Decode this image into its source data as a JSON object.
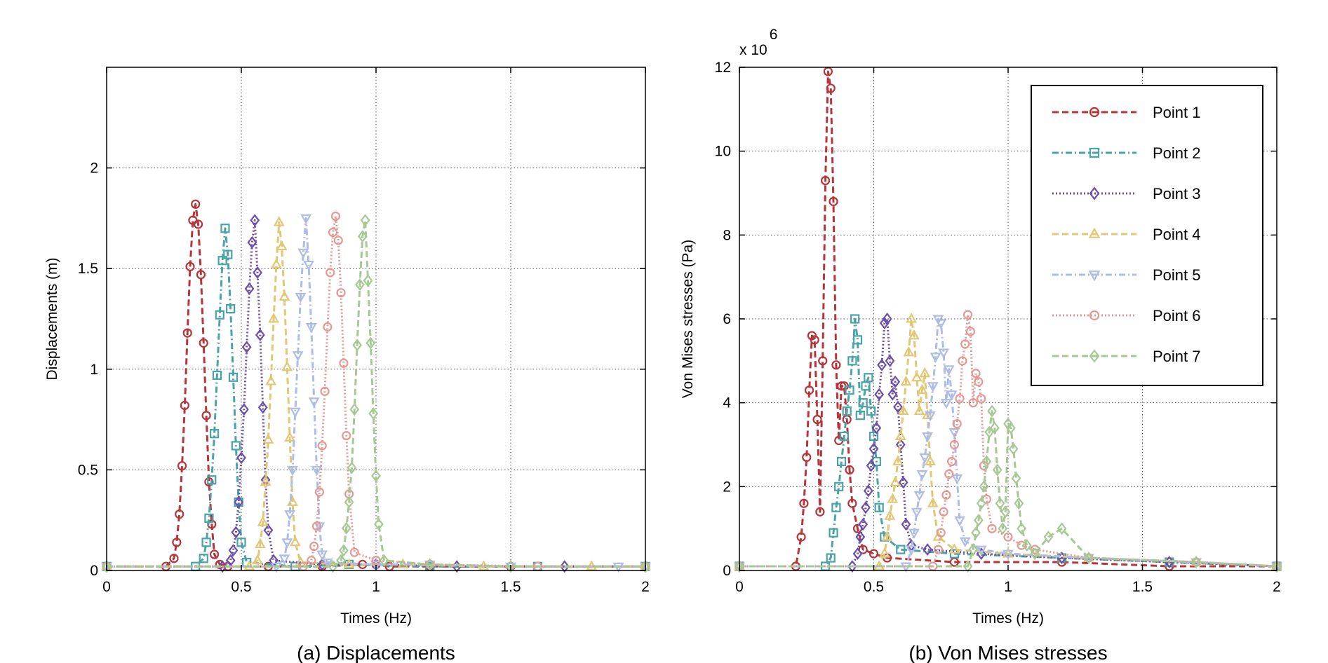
{
  "chart_data": [
    {
      "type": "line",
      "caption": "(a) Displacements",
      "xlabel": "Times (Hz)",
      "ylabel": "Displacements (m)",
      "xlim": [
        0,
        2
      ],
      "ylim": [
        0,
        2.5
      ],
      "xticks": [
        0,
        0.5,
        1,
        1.5,
        2
      ],
      "xtick_labels": [
        "0",
        "0.5",
        "1",
        "1.5",
        "2"
      ],
      "yticks": [
        0,
        0.5,
        1,
        1.5,
        2
      ],
      "ytick_labels": [
        "0",
        "0.5",
        "1",
        "1.5",
        "2"
      ],
      "grid": true,
      "legend": false,
      "series": [
        {
          "color": "#b5363a",
          "dash": "9,5",
          "marker": "circle",
          "x": [
            0,
            0.22,
            0.25,
            0.26,
            0.27,
            0.28,
            0.29,
            0.3,
            0.31,
            0.32,
            0.33,
            0.34,
            0.35,
            0.36,
            0.37,
            0.38,
            0.39,
            0.4,
            0.42,
            0.45,
            0.6,
            0.8,
            0.95,
            1.0,
            1.05,
            1.2,
            1.5,
            2.0
          ],
          "y": [
            0.02,
            0.02,
            0.06,
            0.14,
            0.28,
            0.52,
            0.82,
            1.18,
            1.51,
            1.74,
            1.82,
            1.72,
            1.47,
            1.13,
            0.77,
            0.44,
            0.23,
            0.08,
            0.03,
            0.02,
            0.02,
            0.02,
            0.03,
            0.03,
            0.02,
            0.02,
            0.02,
            0.02
          ]
        },
        {
          "color": "#4aa3a7",
          "dash": "9,4,2,4",
          "marker": "square",
          "x": [
            0,
            0.33,
            0.36,
            0.37,
            0.38,
            0.39,
            0.4,
            0.41,
            0.42,
            0.43,
            0.44,
            0.45,
            0.46,
            0.47,
            0.48,
            0.49,
            0.5,
            0.52,
            0.7,
            0.9,
            1.2,
            1.6,
            2.0
          ],
          "y": [
            0.02,
            0.02,
            0.06,
            0.14,
            0.26,
            0.45,
            0.68,
            0.97,
            1.27,
            1.54,
            1.7,
            1.57,
            1.3,
            0.96,
            0.62,
            0.34,
            0.14,
            0.04,
            0.02,
            0.03,
            0.02,
            0.02,
            0.02
          ]
        },
        {
          "color": "#6b4fa8",
          "dash": "2,3",
          "marker": "diamond",
          "x": [
            0,
            0.43,
            0.46,
            0.47,
            0.48,
            0.49,
            0.5,
            0.51,
            0.52,
            0.53,
            0.54,
            0.55,
            0.56,
            0.57,
            0.58,
            0.59,
            0.6,
            0.62,
            0.8,
            1.0,
            1.3,
            1.7,
            2.0
          ],
          "y": [
            0.02,
            0.02,
            0.05,
            0.1,
            0.19,
            0.34,
            0.56,
            0.8,
            1.11,
            1.4,
            1.63,
            1.74,
            1.48,
            1.17,
            0.81,
            0.45,
            0.2,
            0.05,
            0.03,
            0.03,
            0.02,
            0.02,
            0.02
          ]
        },
        {
          "color": "#e2c777",
          "dash": "9,5",
          "marker": "triangle-up",
          "x": [
            0,
            0.53,
            0.56,
            0.57,
            0.58,
            0.59,
            0.6,
            0.61,
            0.62,
            0.63,
            0.64,
            0.65,
            0.66,
            0.67,
            0.68,
            0.69,
            0.7,
            0.72,
            0.9,
            1.1,
            1.4,
            1.8,
            2.0
          ],
          "y": [
            0.02,
            0.02,
            0.05,
            0.13,
            0.24,
            0.44,
            0.65,
            0.94,
            1.25,
            1.52,
            1.73,
            1.61,
            1.36,
            1.01,
            0.66,
            0.34,
            0.14,
            0.04,
            0.03,
            0.03,
            0.02,
            0.02,
            0.02
          ]
        },
        {
          "color": "#aebde6",
          "dash": "9,4,2,4",
          "marker": "triangle-down",
          "x": [
            0,
            0.63,
            0.66,
            0.67,
            0.68,
            0.69,
            0.7,
            0.71,
            0.72,
            0.73,
            0.74,
            0.75,
            0.76,
            0.77,
            0.78,
            0.79,
            0.8,
            0.82,
            1.0,
            1.2,
            1.5,
            1.9,
            2.0
          ],
          "y": [
            0.02,
            0.02,
            0.06,
            0.14,
            0.28,
            0.5,
            0.79,
            1.07,
            1.36,
            1.58,
            1.75,
            1.52,
            1.21,
            0.84,
            0.5,
            0.22,
            0.08,
            0.04,
            0.03,
            0.03,
            0.02,
            0.02,
            0.02
          ]
        },
        {
          "color": "#e39a94",
          "dash": "2,3",
          "marker": "circle",
          "x": [
            0,
            0.73,
            0.76,
            0.77,
            0.78,
            0.79,
            0.8,
            0.81,
            0.82,
            0.83,
            0.84,
            0.85,
            0.86,
            0.87,
            0.88,
            0.89,
            0.9,
            0.92,
            1.0,
            1.2,
            1.6,
            2.0
          ],
          "y": [
            0.02,
            0.02,
            0.05,
            0.12,
            0.22,
            0.39,
            0.62,
            0.89,
            1.21,
            1.48,
            1.68,
            1.76,
            1.64,
            1.38,
            1.03,
            0.67,
            0.38,
            0.09,
            0.05,
            0.03,
            0.02,
            0.02
          ]
        },
        {
          "color": "#a6c994",
          "dash": "9,5",
          "marker": "diamond",
          "x": [
            0,
            0.84,
            0.87,
            0.88,
            0.89,
            0.9,
            0.91,
            0.92,
            0.93,
            0.94,
            0.95,
            0.96,
            0.97,
            0.98,
            0.99,
            1.0,
            1.01,
            1.03,
            1.2,
            1.5,
            2.0
          ],
          "y": [
            0.02,
            0.02,
            0.05,
            0.1,
            0.21,
            0.34,
            0.51,
            0.8,
            1.12,
            1.42,
            1.66,
            1.74,
            1.44,
            1.13,
            0.78,
            0.47,
            0.23,
            0.05,
            0.03,
            0.02,
            0.02
          ]
        }
      ]
    },
    {
      "type": "line",
      "caption": "(b) Von Mises stresses",
      "xlabel": "Times (Hz)",
      "ylabel": "Von Mises stresses (Pa)",
      "y_multiplier": "x 10",
      "y_multiplier_exp": "6",
      "xlim": [
        0,
        2
      ],
      "ylim": [
        0,
        12
      ],
      "xticks": [
        0,
        0.5,
        1,
        1.5,
        2
      ],
      "xtick_labels": [
        "0",
        "0.5",
        "1",
        "1.5",
        "2"
      ],
      "yticks": [
        0,
        2,
        4,
        6,
        8,
        10,
        12
      ],
      "ytick_labels": [
        "0",
        "2",
        "4",
        "6",
        "8",
        "10",
        "12"
      ],
      "grid": true,
      "legend": "top-right",
      "series": [
        {
          "name": "Point 1",
          "color": "#b5363a",
          "dash": "9,5",
          "marker": "circle",
          "x": [
            0,
            0.21,
            0.23,
            0.24,
            0.25,
            0.26,
            0.27,
            0.28,
            0.29,
            0.3,
            0.31,
            0.32,
            0.33,
            0.34,
            0.35,
            0.36,
            0.37,
            0.38,
            0.39,
            0.4,
            0.41,
            0.42,
            0.44,
            0.46,
            0.5,
            0.55,
            0.8,
            1.2,
            1.6,
            2.0
          ],
          "y": [
            0.1,
            0.1,
            0.8,
            1.6,
            2.7,
            4.3,
            5.6,
            5.5,
            3.6,
            1.4,
            5.0,
            9.3,
            11.9,
            11.5,
            8.8,
            4.9,
            3.1,
            4.4,
            4.4,
            3.6,
            2.4,
            1.6,
            1.0,
            0.5,
            0.4,
            0.3,
            0.2,
            0.2,
            0.1,
            0.1
          ]
        },
        {
          "name": "Point 2",
          "color": "#4aa3a7",
          "dash": "9,4,2,4",
          "marker": "square",
          "x": [
            0,
            0.32,
            0.34,
            0.35,
            0.36,
            0.37,
            0.38,
            0.39,
            0.4,
            0.41,
            0.42,
            0.43,
            0.44,
            0.45,
            0.46,
            0.47,
            0.48,
            0.49,
            0.5,
            0.51,
            0.52,
            0.54,
            0.6,
            0.8,
            1.2,
            1.6,
            2.0
          ],
          "y": [
            0.1,
            0.1,
            0.3,
            0.9,
            1.5,
            2.0,
            2.6,
            3.2,
            3.8,
            4.3,
            5.0,
            6.0,
            5.5,
            3.7,
            4.0,
            4.4,
            4.6,
            3.8,
            3.2,
            2.6,
            1.5,
            0.8,
            0.5,
            0.4,
            0.3,
            0.2,
            0.1
          ]
        },
        {
          "name": "Point 3",
          "color": "#6b4fa8",
          "dash": "2,3",
          "marker": "diamond",
          "x": [
            0,
            0.42,
            0.44,
            0.45,
            0.46,
            0.47,
            0.48,
            0.49,
            0.5,
            0.51,
            0.52,
            0.53,
            0.54,
            0.55,
            0.56,
            0.57,
            0.58,
            0.59,
            0.6,
            0.61,
            0.62,
            0.64,
            0.7,
            0.9,
            1.2,
            1.6,
            2.0
          ],
          "y": [
            0.1,
            0.1,
            0.4,
            0.8,
            1.1,
            1.5,
            1.9,
            2.5,
            2.9,
            3.4,
            4.2,
            4.9,
            5.9,
            6.0,
            5.0,
            4.2,
            4.5,
            3.9,
            3.0,
            2.1,
            1.1,
            0.6,
            0.5,
            0.4,
            0.3,
            0.2,
            0.1
          ]
        },
        {
          "name": "Point 4",
          "color": "#e2c777",
          "dash": "9,5",
          "marker": "triangle-up",
          "x": [
            0,
            0.52,
            0.54,
            0.55,
            0.56,
            0.57,
            0.58,
            0.59,
            0.6,
            0.61,
            0.62,
            0.63,
            0.64,
            0.65,
            0.66,
            0.67,
            0.68,
            0.69,
            0.7,
            0.71,
            0.72,
            0.74,
            0.8,
            1.0,
            1.3,
            1.7,
            2.0
          ],
          "y": [
            0.1,
            0.1,
            0.4,
            0.8,
            1.3,
            1.7,
            2.1,
            2.6,
            3.2,
            3.8,
            4.5,
            5.2,
            6.0,
            5.6,
            4.6,
            3.8,
            4.3,
            4.7,
            3.7,
            2.6,
            1.6,
            0.8,
            0.5,
            0.4,
            0.3,
            0.2,
            0.1
          ]
        },
        {
          "name": "Point 5",
          "color": "#aebde6",
          "dash": "9,4,2,4",
          "marker": "triangle-down",
          "x": [
            0,
            0.62,
            0.64,
            0.65,
            0.66,
            0.67,
            0.68,
            0.69,
            0.7,
            0.71,
            0.72,
            0.73,
            0.74,
            0.75,
            0.76,
            0.77,
            0.78,
            0.79,
            0.8,
            0.81,
            0.82,
            0.84,
            0.9,
            1.0,
            1.3,
            1.7,
            2.0
          ],
          "y": [
            0.1,
            0.1,
            0.5,
            0.9,
            1.4,
            1.8,
            2.3,
            2.7,
            3.2,
            3.7,
            4.4,
            5.1,
            6.0,
            5.9,
            5.2,
            4.0,
            4.8,
            4.2,
            3.3,
            2.2,
            1.2,
            0.7,
            0.5,
            0.4,
            0.3,
            0.2,
            0.1
          ]
        },
        {
          "name": "Point 6",
          "color": "#e39a94",
          "dash": "2,3",
          "marker": "circle",
          "x": [
            0,
            0.72,
            0.74,
            0.75,
            0.76,
            0.77,
            0.78,
            0.79,
            0.8,
            0.81,
            0.82,
            0.83,
            0.84,
            0.85,
            0.86,
            0.87,
            0.88,
            0.89,
            0.9,
            0.91,
            0.92,
            0.94,
            1.0,
            1.05,
            1.1,
            1.3,
            1.7,
            2.0
          ],
          "y": [
            0.1,
            0.1,
            0.5,
            0.9,
            1.4,
            1.8,
            2.3,
            2.6,
            3.0,
            3.5,
            4.1,
            5.0,
            5.4,
            6.1,
            5.7,
            4.0,
            4.7,
            4.5,
            4.1,
            2.5,
            1.7,
            1.0,
            0.8,
            0.6,
            0.5,
            0.3,
            0.2,
            0.1
          ]
        },
        {
          "name": "Point 7",
          "color": "#a6c994",
          "dash": "9,5",
          "marker": "diamond",
          "x": [
            0,
            0.85,
            0.87,
            0.88,
            0.89,
            0.9,
            0.91,
            0.92,
            0.93,
            0.94,
            0.95,
            0.96,
            0.97,
            0.98,
            0.99,
            1.0,
            1.01,
            1.02,
            1.03,
            1.04,
            1.05,
            1.07,
            1.1,
            1.15,
            1.2,
            1.3,
            1.7,
            2.0
          ],
          "y": [
            0.1,
            0.1,
            0.5,
            0.9,
            1.2,
            1.6,
            2.0,
            2.6,
            3.3,
            3.8,
            3.4,
            2.4,
            1.6,
            1.0,
            1.4,
            3.5,
            3.4,
            2.9,
            2.2,
            1.6,
            1.0,
            0.6,
            0.4,
            0.8,
            1.0,
            0.3,
            0.2,
            0.1
          ]
        }
      ]
    }
  ]
}
